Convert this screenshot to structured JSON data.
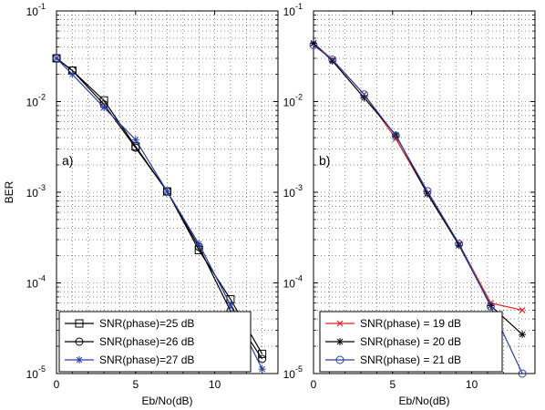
{
  "chart_data": [
    {
      "type": "line",
      "panel_label": "a)",
      "xlabel": "Eb/No(dB)",
      "ylabel": "BER",
      "xlim": [
        0,
        14
      ],
      "ylim": [
        1e-05,
        0.1
      ],
      "yscale": "log",
      "grid": true,
      "legend_position": "bottom-right",
      "x_ticks": [
        "0",
        "5",
        "10"
      ],
      "y_ticks": [
        {
          "base": "10",
          "exp": "-1",
          "value": 0.1
        },
        {
          "base": "10",
          "exp": "-2",
          "value": 0.01
        },
        {
          "base": "10",
          "exp": "-3",
          "value": 0.001
        },
        {
          "base": "10",
          "exp": "-4",
          "value": 0.0001
        },
        {
          "base": "10",
          "exp": "-5",
          "value": 1e-05
        }
      ],
      "series": [
        {
          "name": "SNR(phase)=25 dB",
          "color": "#000000",
          "marker": "square",
          "x": [
            0,
            1,
            3,
            5,
            7,
            9,
            11,
            13
          ],
          "y": [
            0.03,
            0.022,
            0.0103,
            0.0032,
            0.00102,
            0.00023,
            6.6e-05,
            1.65e-05
          ]
        },
        {
          "name": "SNR(phase)=26 dB",
          "color": "#000000",
          "marker": "circle",
          "x": [
            0,
            1,
            3,
            5,
            7,
            9,
            11,
            13
          ],
          "y": [
            0.03,
            0.022,
            0.0093,
            0.0031,
            0.00102,
            0.00025,
            4.9e-05,
            1.45e-05
          ]
        },
        {
          "name": "SNR(phase)=27 dB",
          "color": "#2b3fa6",
          "marker": "star",
          "x": [
            0,
            1,
            3,
            5,
            7,
            9,
            11,
            13
          ],
          "y": [
            0.03,
            0.02,
            0.0086,
            0.0038,
            0.00102,
            0.00027,
            5.7e-05,
            1.12e-05
          ]
        }
      ]
    },
    {
      "type": "line",
      "panel_label": "b)",
      "xlabel": "Eb/No(dB)",
      "ylabel": "",
      "xlim": [
        0,
        14
      ],
      "ylim": [
        1e-05,
        0.1
      ],
      "yscale": "log",
      "grid": true,
      "legend_position": "bottom-right",
      "x_ticks": [
        "0",
        "5",
        "10"
      ],
      "y_ticks": [
        {
          "base": "10",
          "exp": "-1",
          "value": 0.1
        },
        {
          "base": "10",
          "exp": "-2",
          "value": 0.01
        },
        {
          "base": "10",
          "exp": "-3",
          "value": 0.001
        },
        {
          "base": "10",
          "exp": "-4",
          "value": 0.0001
        },
        {
          "base": "10",
          "exp": "-5",
          "value": 1e-05
        }
      ],
      "series": [
        {
          "name": "SNR(phase) = 19 dB",
          "color": "#e02020",
          "marker": "x",
          "x": [
            0,
            1.2,
            3.2,
            5.2,
            7.2,
            9.2,
            11.2,
            13.2
          ],
          "y": [
            0.044,
            0.029,
            0.012,
            0.0039,
            0.00097,
            0.00027,
            6e-05,
            5e-05
          ]
        },
        {
          "name": "SNR(phase) = 20 dB",
          "color": "#000000",
          "marker": "asterisk",
          "x": [
            0,
            1.2,
            3.2,
            5.2,
            7.2,
            9.2,
            11.2,
            13.2
          ],
          "y": [
            0.044,
            0.028,
            0.011,
            0.0043,
            0.00096,
            0.00026,
            5.6e-05,
            2.7e-05
          ]
        },
        {
          "name": "SNR(phase) = 21 dB",
          "color": "#2b3fa6",
          "marker": "circle",
          "x": [
            0,
            1.2,
            3.2,
            5.2,
            7.2,
            9.2,
            11.2,
            13.2
          ],
          "y": [
            0.042,
            0.029,
            0.012,
            0.0042,
            0.00103,
            0.00027,
            5.5e-05,
            1e-05
          ]
        }
      ]
    }
  ]
}
